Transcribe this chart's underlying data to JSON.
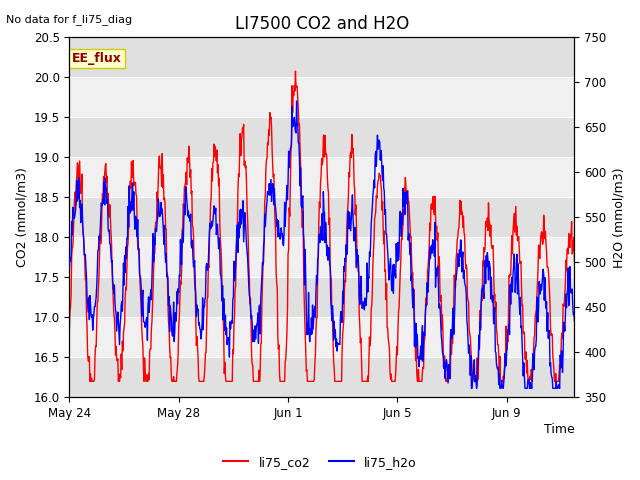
{
  "title": "LI7500 CO2 and H2O",
  "top_left_note": "No data for f_li75_diag",
  "xlabel": "Time",
  "ylabel_left": "CO2 (mmol/m3)",
  "ylabel_right": "H2O (mmol/m3)",
  "legend_labels": [
    "li75_co2",
    "li75_h2o"
  ],
  "legend_colors": [
    "red",
    "blue"
  ],
  "co2_ylim": [
    16.0,
    20.5
  ],
  "h2o_ylim": [
    350,
    750
  ],
  "co2_yticks": [
    16.0,
    16.5,
    17.0,
    17.5,
    18.0,
    18.5,
    19.0,
    19.5,
    20.0,
    20.5
  ],
  "h2o_yticks": [
    350,
    400,
    450,
    500,
    550,
    600,
    650,
    700,
    750
  ],
  "xtick_labels": [
    "May 24",
    "May 28",
    "Jun 1",
    "Jun 5",
    "Jun 9"
  ],
  "bg_color": "#ffffff",
  "plot_bg_light": "#f0f0f0",
  "plot_bg_dark": "#e0e0e0",
  "label_box_color": "#ffffcc",
  "label_box_text": "EE_flux",
  "label_box_edge": "#cccc00",
  "line_width": 1.0
}
